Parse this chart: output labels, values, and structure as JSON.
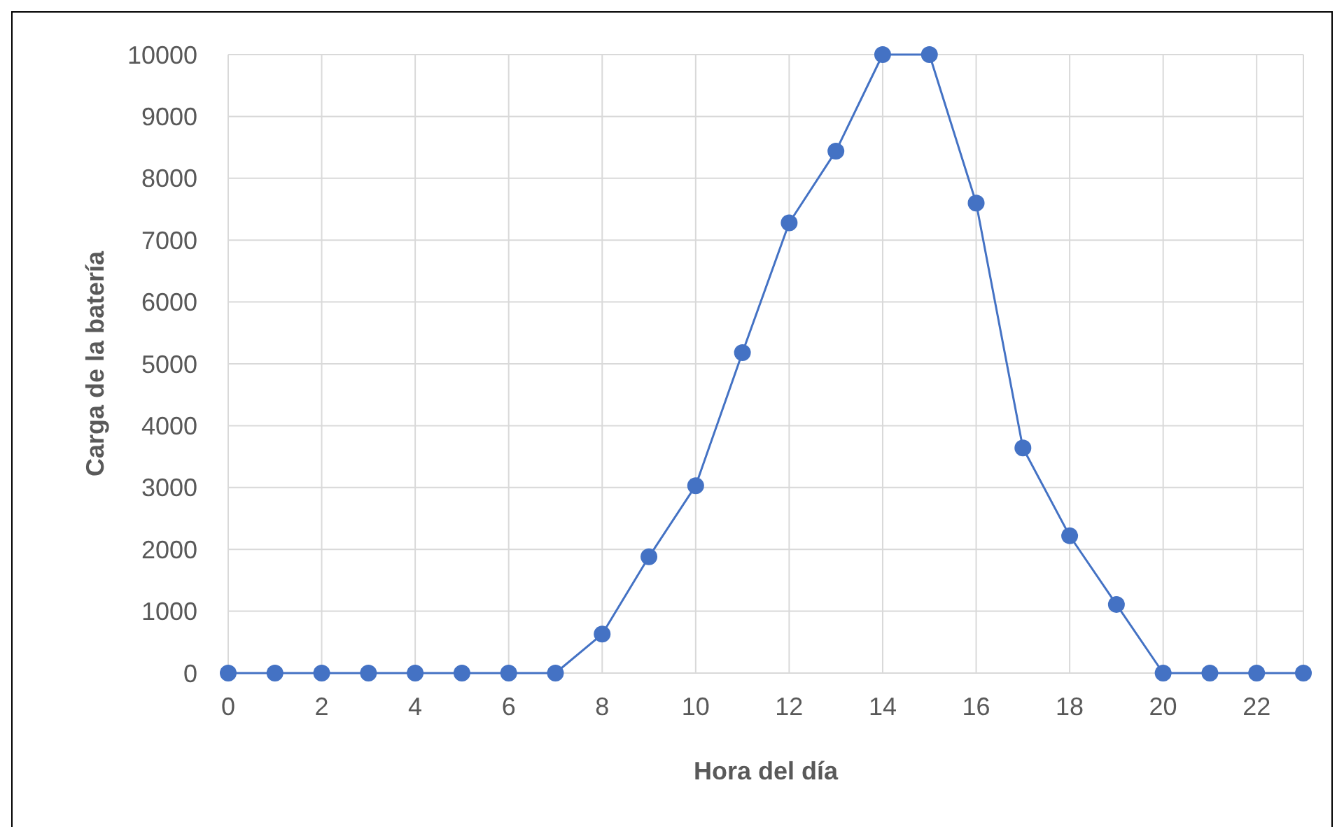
{
  "chart_data": {
    "type": "line",
    "xlabel": "Hora del día",
    "ylabel": "Carga de la batería",
    "x": [
      0,
      1,
      2,
      3,
      4,
      5,
      6,
      7,
      8,
      9,
      10,
      11,
      12,
      13,
      14,
      15,
      16,
      17,
      18,
      19,
      20,
      21,
      22,
      23
    ],
    "series": [
      {
        "color": "#4472c4",
        "values": [
          0,
          0,
          0,
          0,
          0,
          0,
          0,
          0,
          630,
          1880,
          3030,
          5180,
          7280,
          8440,
          10000,
          10000,
          7600,
          3640,
          2220,
          1110,
          0,
          0,
          0,
          0
        ]
      }
    ],
    "xlim": [
      0,
      23
    ],
    "xticks": [
      0,
      2,
      4,
      6,
      8,
      10,
      12,
      14,
      16,
      18,
      20,
      22
    ],
    "ylim": [
      0,
      10000
    ],
    "yticks": [
      0,
      1000,
      2000,
      3000,
      4000,
      5000,
      6000,
      7000,
      8000,
      9000,
      10000
    ],
    "grid": true,
    "marker": "circle",
    "line_style": "solid"
  }
}
